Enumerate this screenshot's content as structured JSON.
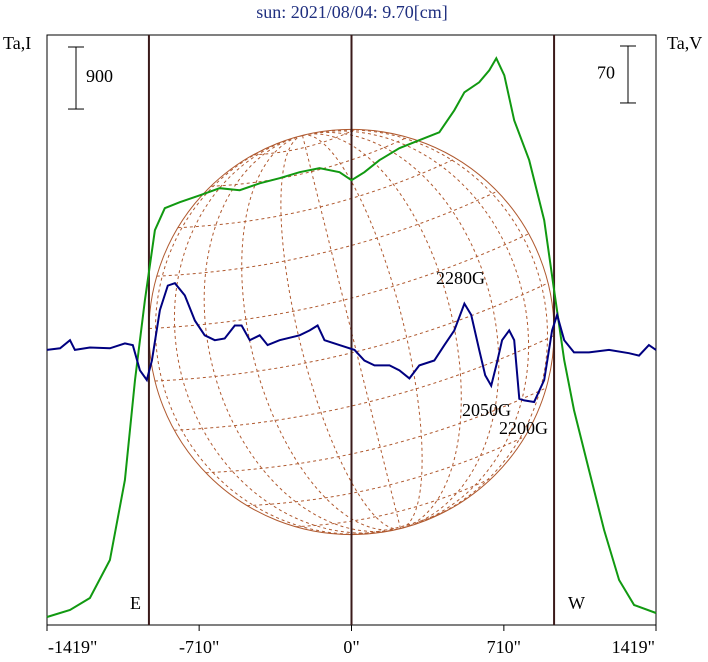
{
  "chart_data": {
    "type": "line",
    "title": "sun: 2021/08/04: 9.70[cm]",
    "ylabel": "Ta,I",
    "y2label": "Ta,V",
    "xlim": [
      -1419,
      1419
    ],
    "xticks": [
      {
        "value": -1419,
        "label": "-1419\""
      },
      {
        "value": -710,
        "label": "-710\""
      },
      {
        "value": 0,
        "label": "0\""
      },
      {
        "value": 710,
        "label": "710\""
      },
      {
        "value": 1419,
        "label": "1419\""
      }
    ],
    "ylim": [
      0,
      8560
    ],
    "y2lim": [
      -340,
      385
    ],
    "limb_lines": [
      -944,
      0,
      944
    ],
    "scale_bars": [
      {
        "label": "900",
        "value": 900,
        "axis": "y"
      },
      {
        "label": "70",
        "value": 70,
        "axis": "y2"
      }
    ],
    "annotations": [
      "2280G",
      "2050G",
      "2200G",
      "E",
      "W"
    ],
    "series": [
      {
        "name": "Ta,I",
        "color": "#119911",
        "axis": "y",
        "x": [
          -1419,
          -1312,
          -1219,
          -1126,
          -1056,
          -1009,
          -963,
          -916,
          -870,
          -800,
          -707,
          -614,
          -521,
          -428,
          -335,
          -242,
          -149,
          -56,
          0,
          60,
          130,
          223,
          316,
          409,
          479,
          526,
          595,
          642,
          675,
          712,
          758,
          828,
          898,
          944,
          991,
          1037,
          1107,
          1177,
          1247,
          1317,
          1419
        ],
        "values": [
          116,
          218,
          392,
          943,
          2103,
          3553,
          4713,
          5728,
          6047,
          6134,
          6235,
          6337,
          6308,
          6409,
          6482,
          6569,
          6627,
          6569,
          6453,
          6569,
          6743,
          6917,
          7033,
          7149,
          7468,
          7729,
          7874,
          8048,
          8222,
          7975,
          7323,
          6743,
          5873,
          4858,
          3843,
          3118,
          2248,
          1378,
          653,
          290,
          174
        ]
      },
      {
        "name": "Ta,V",
        "color": "#000080",
        "axis": "y2",
        "x": [
          -1419,
          -1358,
          -1312,
          -1289,
          -1219,
          -1126,
          -1056,
          -1019,
          -986,
          -954,
          -930,
          -893,
          -856,
          -823,
          -777,
          -730,
          -684,
          -637,
          -591,
          -544,
          -512,
          -474,
          -428,
          -391,
          -335,
          -242,
          -195,
          -158,
          -126,
          -56,
          14,
          60,
          107,
          177,
          223,
          270,
          316,
          386,
          433,
          479,
          526,
          558,
          595,
          623,
          651,
          675,
          702,
          735,
          758,
          782,
          805,
          851,
          898,
          935,
          958,
          991,
          1037,
          1107,
          1200,
          1293,
          1340,
          1386,
          1419
        ],
        "values": [
          -2,
          0,
          10,
          -2,
          1,
          0,
          6,
          4,
          -27,
          -39,
          -15,
          47,
          77,
          80,
          65,
          34,
          16,
          10,
          12,
          28,
          28,
          10,
          16,
          4,
          10,
          16,
          22,
          28,
          10,
          4,
          -2,
          -15,
          -21,
          -21,
          -27,
          -37,
          -21,
          -15,
          4,
          22,
          55,
          41,
          -2,
          -33,
          -46,
          -21,
          10,
          22,
          10,
          -62,
          -64,
          -66,
          -39,
          22,
          41,
          10,
          -5,
          -5,
          -2,
          -6,
          -9,
          4,
          -2
        ]
      }
    ]
  }
}
